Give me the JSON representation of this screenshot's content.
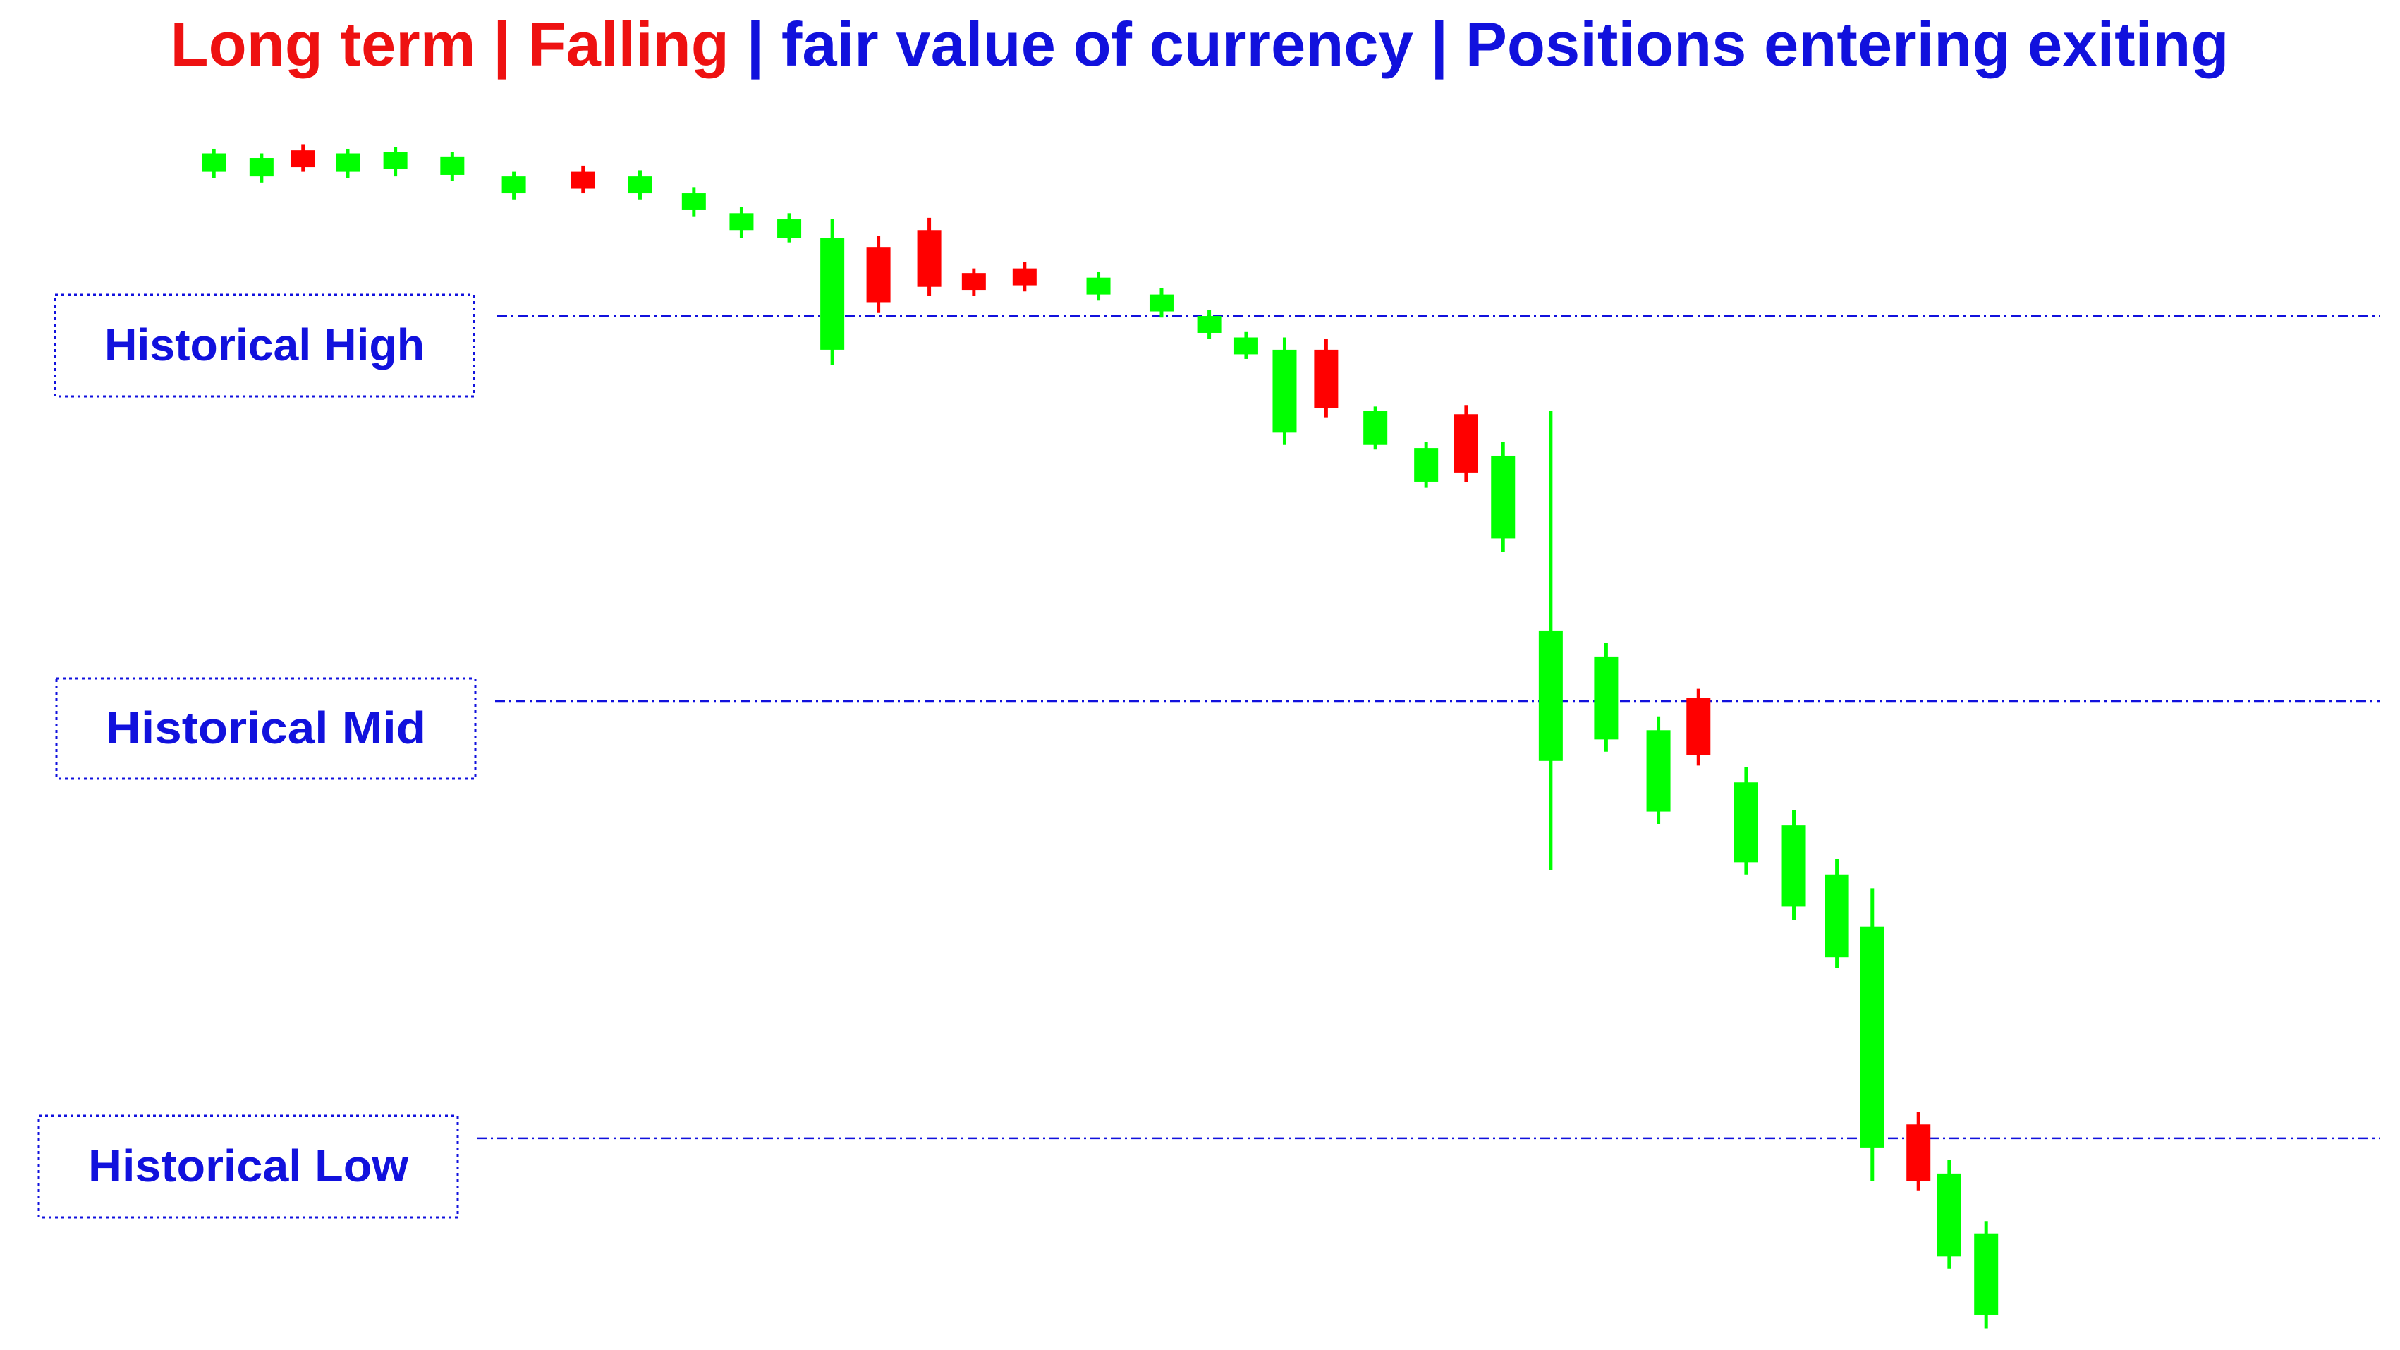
{
  "chart_data": {
    "type": "candlestick",
    "title": [
      {
        "text": "Long term | ",
        "color": "#ee1111"
      },
      {
        "text": "Falling",
        "color": "#ee1111"
      },
      {
        "text": " | fair value of currency | Positions entering exiting",
        "color": "#1111dd"
      }
    ],
    "up_color": "#ff0000",
    "down_color": "#00ff00",
    "xlim": [
      0,
      1560
    ],
    "ylim": [
      0,
      880
    ],
    "x": [
      139,
      170,
      197,
      226,
      257,
      294,
      334,
      379,
      416,
      451,
      482,
      513,
      541,
      571,
      604,
      633,
      666,
      714,
      755,
      786,
      810,
      835,
      862,
      894,
      927,
      953,
      977,
      1008,
      1044,
      1078,
      1104,
      1135,
      1166,
      1194,
      1217,
      1247,
      1267,
      1291
    ],
    "open": [
      780,
      777,
      771,
      780,
      781,
      778,
      765,
      757,
      765,
      754,
      741,
      737,
      725,
      683,
      693,
      691,
      694,
      699,
      688,
      674,
      660,
      652,
      614,
      612,
      588,
      572,
      583,
      469,
      452,
      404,
      388,
      370,
      342,
      310,
      276,
      110,
      115,
      76
    ],
    "high": [
      783,
      780,
      786,
      783,
      784,
      781,
      768,
      772,
      769,
      758,
      745,
      741,
      737,
      726,
      738,
      705,
      709,
      703,
      692,
      678,
      664,
      660,
      659,
      615,
      592,
      616,
      592,
      612,
      461,
      413,
      431,
      380,
      352,
      320,
      301,
      155,
      124,
      84
    ],
    "low": [
      764,
      761,
      768,
      764,
      765,
      762,
      750,
      754,
      750,
      739,
      725,
      722,
      642,
      676,
      687,
      687,
      690,
      684,
      673,
      659,
      646,
      590,
      608,
      587,
      562,
      566,
      520,
      313,
      390,
      343,
      381,
      310,
      280,
      249,
      110,
      104,
      53,
      14
    ],
    "close": [
      768,
      765,
      782,
      768,
      770,
      766,
      754,
      768,
      754,
      743,
      730,
      725,
      652,
      719,
      730,
      702,
      705,
      688,
      677,
      663,
      649,
      598,
      652,
      590,
      566,
      610,
      529,
      384,
      398,
      351,
      425,
      318,
      289,
      256,
      132,
      147,
      61,
      23
    ],
    "level_color": "#1111dd",
    "levels": [
      {
        "name": "Historical High",
        "value": 674
      },
      {
        "name": "Historical Mid",
        "value": 423
      },
      {
        "name": "Historical Low",
        "value": 138
      }
    ]
  }
}
